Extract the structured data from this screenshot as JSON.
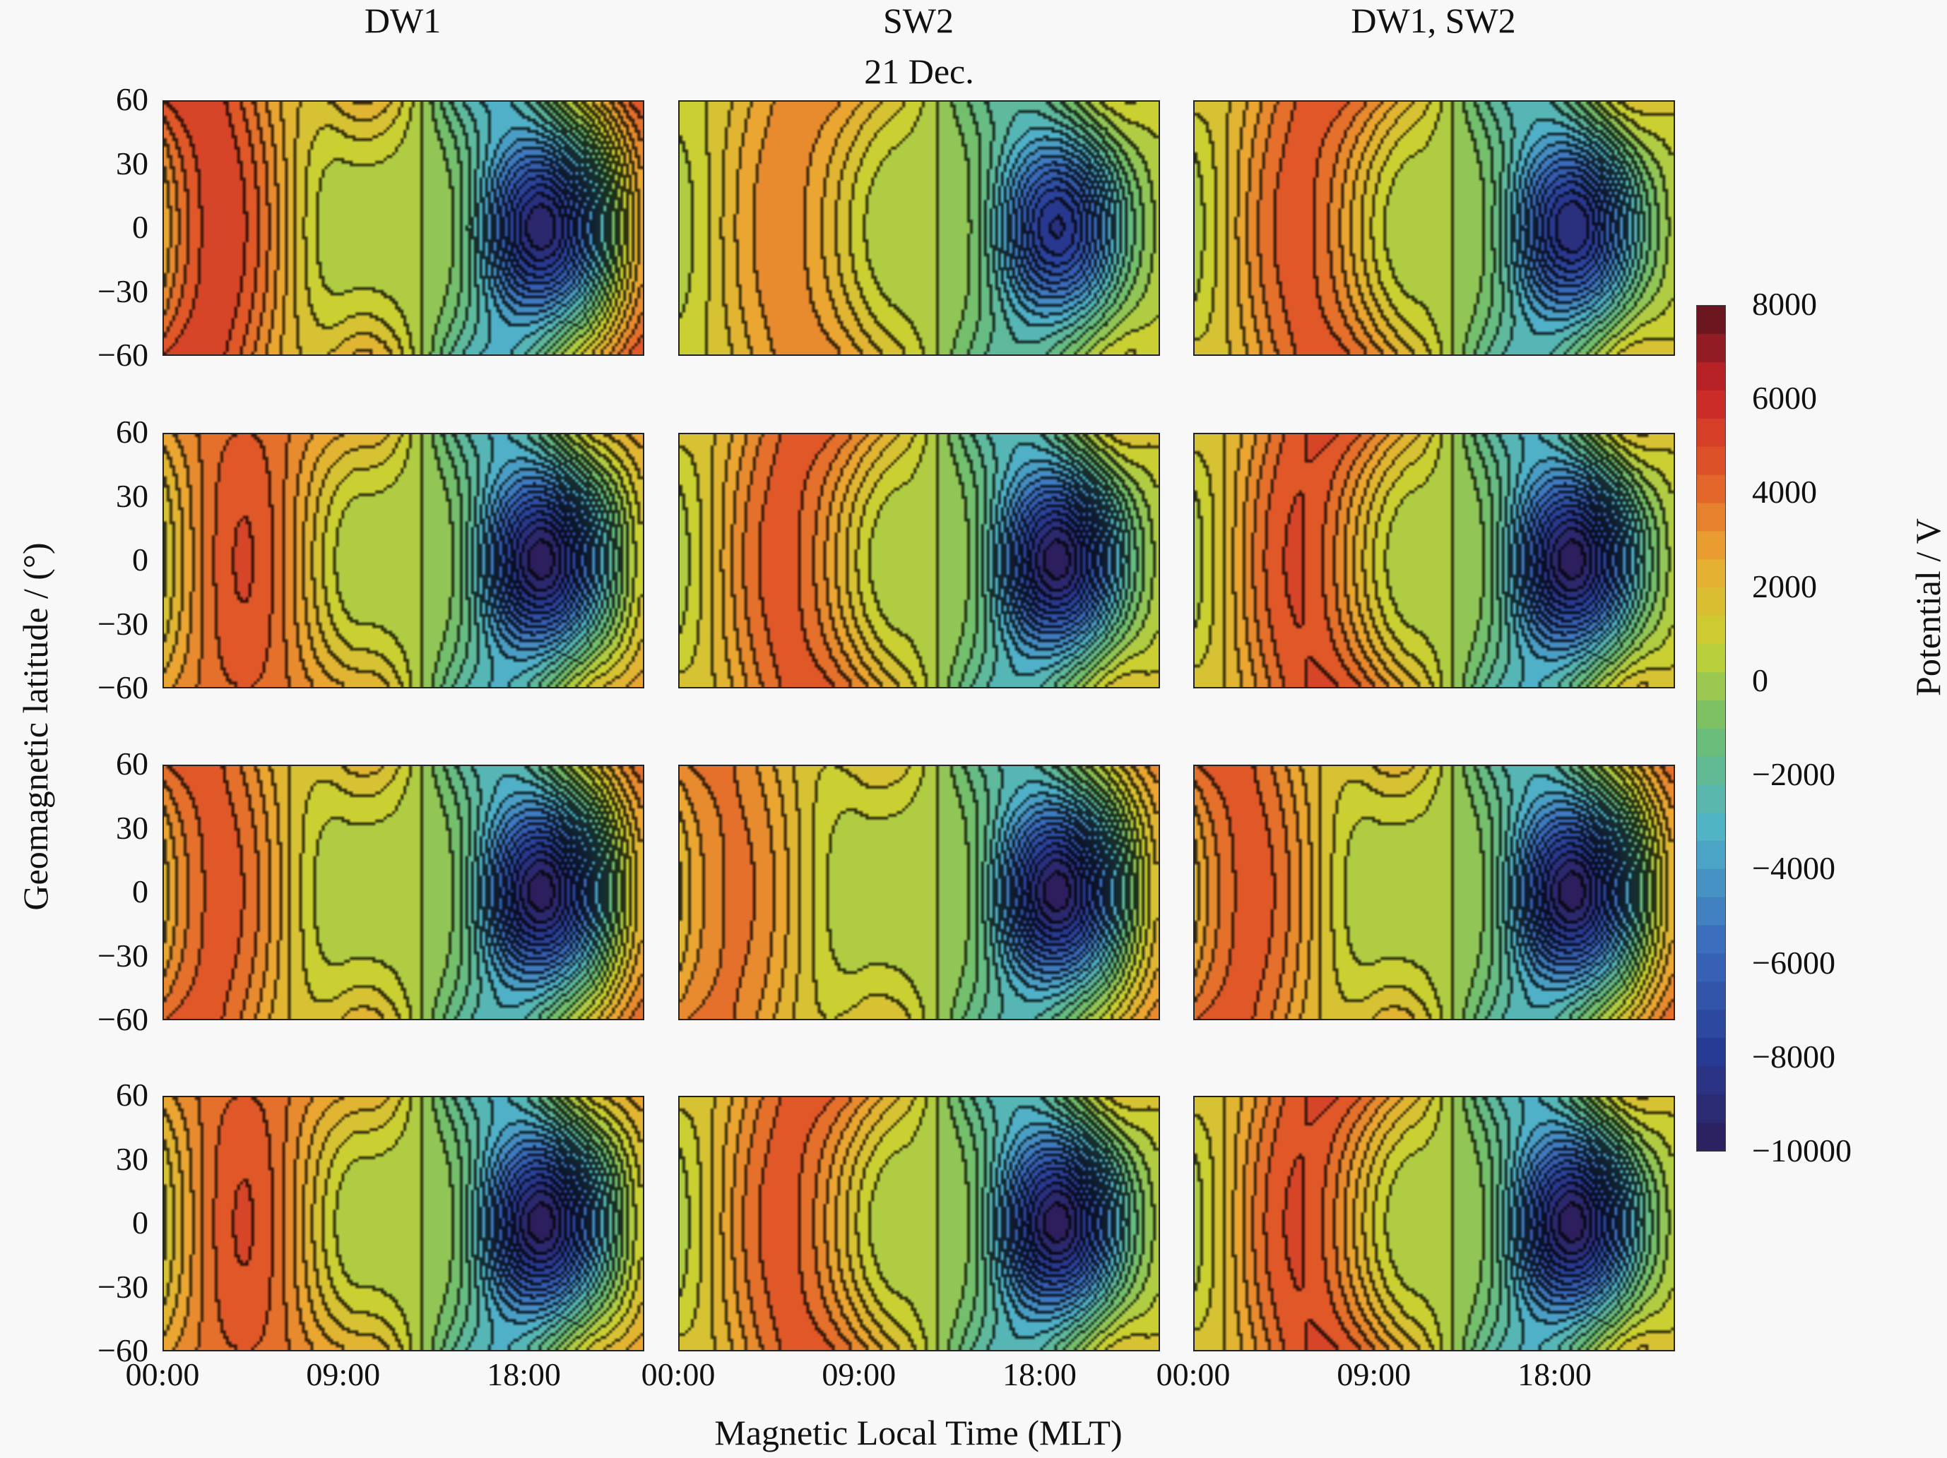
{
  "chart_data": {
    "type": "heatmap",
    "title": "21 Dec.",
    "column_titles": [
      "DW1",
      "SW2",
      "DW1, SW2"
    ],
    "rows": 4,
    "xlabel": "Magnetic Local Time (MLT)",
    "ylabel": "Geomagnetic latitude / (°)",
    "x_ticks": [
      "00:00",
      "09:00",
      "18:00"
    ],
    "x_range_hours": [
      0,
      24
    ],
    "y_ticks": [
      "60",
      "30",
      "0",
      "−30",
      "−60"
    ],
    "y_range_deg": [
      -60,
      60
    ],
    "colorbar": {
      "label": "Potential / V",
      "range": [
        -10000,
        8000
      ],
      "ticks": [
        "8000",
        "6000",
        "4000",
        "2000",
        "0",
        "−2000",
        "−4000",
        "−6000",
        "−8000",
        "−10000"
      ],
      "colormap": "jet"
    },
    "contour_lines": true,
    "panels": [
      {
        "row": 1,
        "col": "DW1",
        "max_V": 7000,
        "min_V": -9500,
        "max_mlt": 3,
        "min_mlt": 19
      },
      {
        "row": 1,
        "col": "SW2",
        "max_V": 4500,
        "min_V": -8500,
        "max_mlt": 5,
        "min_mlt": 19
      },
      {
        "row": 1,
        "col": "DW1, SW2",
        "max_V": 6000,
        "min_V": -9000,
        "max_mlt": 5,
        "min_mlt": 19
      },
      {
        "row": 2,
        "col": "DW1",
        "max_V": 6500,
        "min_V": -10000,
        "max_mlt": 4,
        "min_mlt": 19
      },
      {
        "row": 2,
        "col": "SW2",
        "max_V": 6000,
        "min_V": -10000,
        "max_mlt": 5,
        "min_mlt": 19
      },
      {
        "row": 2,
        "col": "DW1, SW2",
        "max_V": 6500,
        "min_V": -10000,
        "max_mlt": 5,
        "min_mlt": 19
      },
      {
        "row": 3,
        "col": "DW1",
        "max_V": 6000,
        "min_V": -10000,
        "max_mlt": 3,
        "min_mlt": 19
      },
      {
        "row": 3,
        "col": "SW2",
        "max_V": 5000,
        "min_V": -10000,
        "max_mlt": 3,
        "min_mlt": 19
      },
      {
        "row": 3,
        "col": "DW1, SW2",
        "max_V": 6000,
        "min_V": -10000,
        "max_mlt": 3,
        "min_mlt": 19
      },
      {
        "row": 4,
        "col": "DW1",
        "max_V": 6500,
        "min_V": -10000,
        "max_mlt": 4,
        "min_mlt": 19
      },
      {
        "row": 4,
        "col": "SW2",
        "max_V": 6000,
        "min_V": -10000,
        "max_mlt": 5,
        "min_mlt": 19
      },
      {
        "row": 4,
        "col": "DW1, SW2",
        "max_V": 6500,
        "min_V": -10000,
        "max_mlt": 5,
        "min_mlt": 19
      }
    ]
  }
}
